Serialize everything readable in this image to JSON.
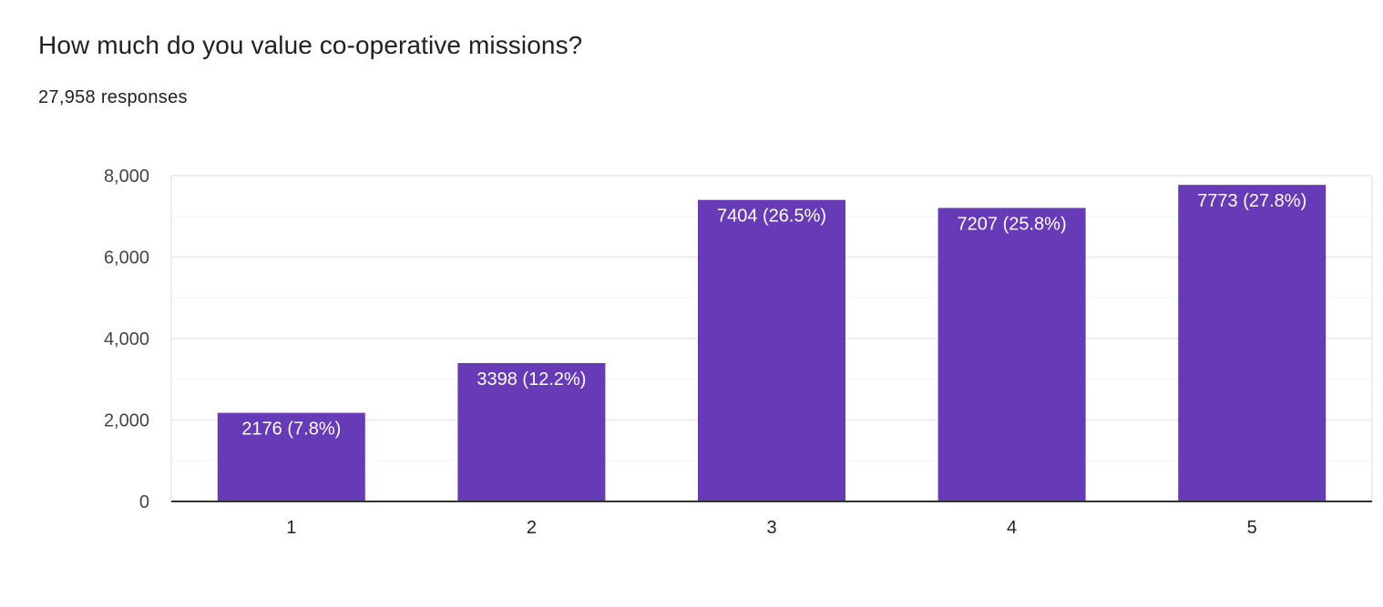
{
  "question": {
    "title": "How much do you value co-operative missions?",
    "responses_text": "27,958 responses"
  },
  "colors": {
    "bar": "#673ab7",
    "grid_major": "#e8e8e8",
    "grid_minor": "#f3f3f3",
    "axis": "#333333"
  },
  "chart_data": {
    "type": "bar",
    "title": "",
    "xlabel": "",
    "ylabel": "",
    "categories": [
      "1",
      "2",
      "3",
      "4",
      "5"
    ],
    "values": [
      2176,
      3398,
      7404,
      7207,
      7773
    ],
    "data_labels": [
      "2176 (7.8%)",
      "3398 (12.2%)",
      "7404 (26.5%)",
      "7207 (25.8%)",
      "7773 (27.8%)"
    ],
    "ylim": [
      0,
      8000
    ],
    "y_ticks": [
      0,
      2000,
      4000,
      6000,
      8000
    ],
    "y_tick_labels": [
      "0",
      "2,000",
      "4,000",
      "6,000",
      "8,000"
    ],
    "grid": true,
    "legend": "none"
  }
}
